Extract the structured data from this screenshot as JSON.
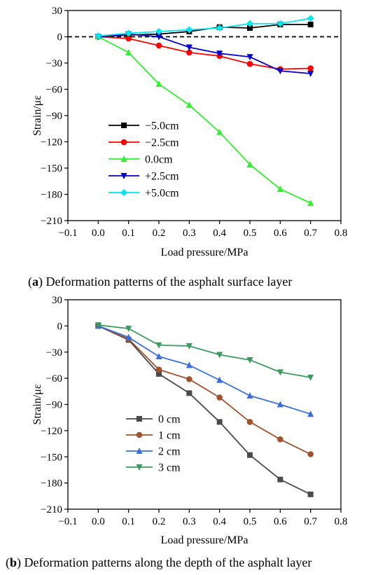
{
  "captions": {
    "a_letter": "a",
    "a_text": "Deformation patterns of the asphalt surface layer",
    "b_letter": "b",
    "b_text": "Deformation patterns along the depth of the asphalt layer"
  },
  "chart_data": [
    {
      "type": "line",
      "id": "a",
      "xlabel": "Load pressure/MPa",
      "ylabel": "Strain/με",
      "xlim": [
        -0.1,
        0.8
      ],
      "ylim": [
        -210,
        30
      ],
      "xticks": [
        "-0.1",
        "0.0",
        "0.1",
        "0.2",
        "0.3",
        "0.4",
        "0.5",
        "0.6",
        "0.7",
        "0.8"
      ],
      "yticks": [
        "30",
        "0",
        "-30",
        "-60",
        "-90",
        "-120",
        "-150",
        "-180",
        "-210"
      ],
      "grid": false,
      "legend_position": "center-left",
      "reference_line": {
        "y": 0,
        "style": "dashed"
      },
      "x": [
        0.0,
        0.1,
        0.2,
        0.3,
        0.4,
        0.5,
        0.6,
        0.7
      ],
      "series": [
        {
          "name": "−5.0cm",
          "color": "#000000",
          "marker": "square",
          "values": [
            0,
            2,
            3,
            6,
            11,
            10,
            14,
            14
          ]
        },
        {
          "name": "−2.5cm",
          "color": "#ff0000",
          "marker": "circle",
          "values": [
            0,
            -2,
            -10,
            -18,
            -22,
            -31,
            -37,
            -36
          ]
        },
        {
          "name": "0.0cm",
          "color": "#33ee33",
          "marker": "triangle-up",
          "values": [
            0,
            -18,
            -54,
            -78,
            -109,
            -146,
            -174,
            -190
          ]
        },
        {
          "name": "+2.5cm",
          "color": "#0000cc",
          "marker": "triangle-down",
          "values": [
            0,
            3,
            0,
            -12,
            -19,
            -23,
            -39,
            -42
          ]
        },
        {
          "name": "+5.0cm",
          "color": "#00e5ee",
          "marker": "diamond",
          "values": [
            1,
            4,
            6,
            8,
            10,
            15,
            15,
            21
          ]
        }
      ]
    },
    {
      "type": "line",
      "id": "b",
      "xlabel": "Load pressure/MPa",
      "ylabel": "Strain/με",
      "xlim": [
        -0.1,
        0.8
      ],
      "ylim": [
        -210,
        30
      ],
      "xticks": [
        "-0.1",
        "0.0",
        "0.1",
        "0.2",
        "0.3",
        "0.4",
        "0.5",
        "0.6",
        "0.7",
        "0.8"
      ],
      "yticks": [
        "30",
        "0",
        "-30",
        "-60",
        "-90",
        "-120",
        "-150",
        "-180",
        "-210"
      ],
      "grid": false,
      "legend_position": "center-left",
      "x": [
        0.0,
        0.1,
        0.2,
        0.3,
        0.4,
        0.5,
        0.6,
        0.7
      ],
      "series": [
        {
          "name": "0 cm",
          "color": "#4a4a4a",
          "marker": "square",
          "values": [
            0,
            -16,
            -55,
            -77,
            -110,
            -148,
            -176,
            -193
          ]
        },
        {
          "name": "1 cm",
          "color": "#a0522d",
          "marker": "circle",
          "values": [
            0,
            -15,
            -50,
            -61,
            -82,
            -110,
            -130,
            -147
          ]
        },
        {
          "name": "2 cm",
          "color": "#3a6fd8",
          "marker": "triangle-up",
          "values": [
            0,
            -13,
            -35,
            -45,
            -62,
            -80,
            -90,
            -101
          ]
        },
        {
          "name": "3 cm",
          "color": "#3c9a5f",
          "marker": "triangle-down",
          "values": [
            1,
            -3,
            -22,
            -23,
            -33,
            -39,
            -53,
            -59
          ]
        }
      ]
    }
  ]
}
